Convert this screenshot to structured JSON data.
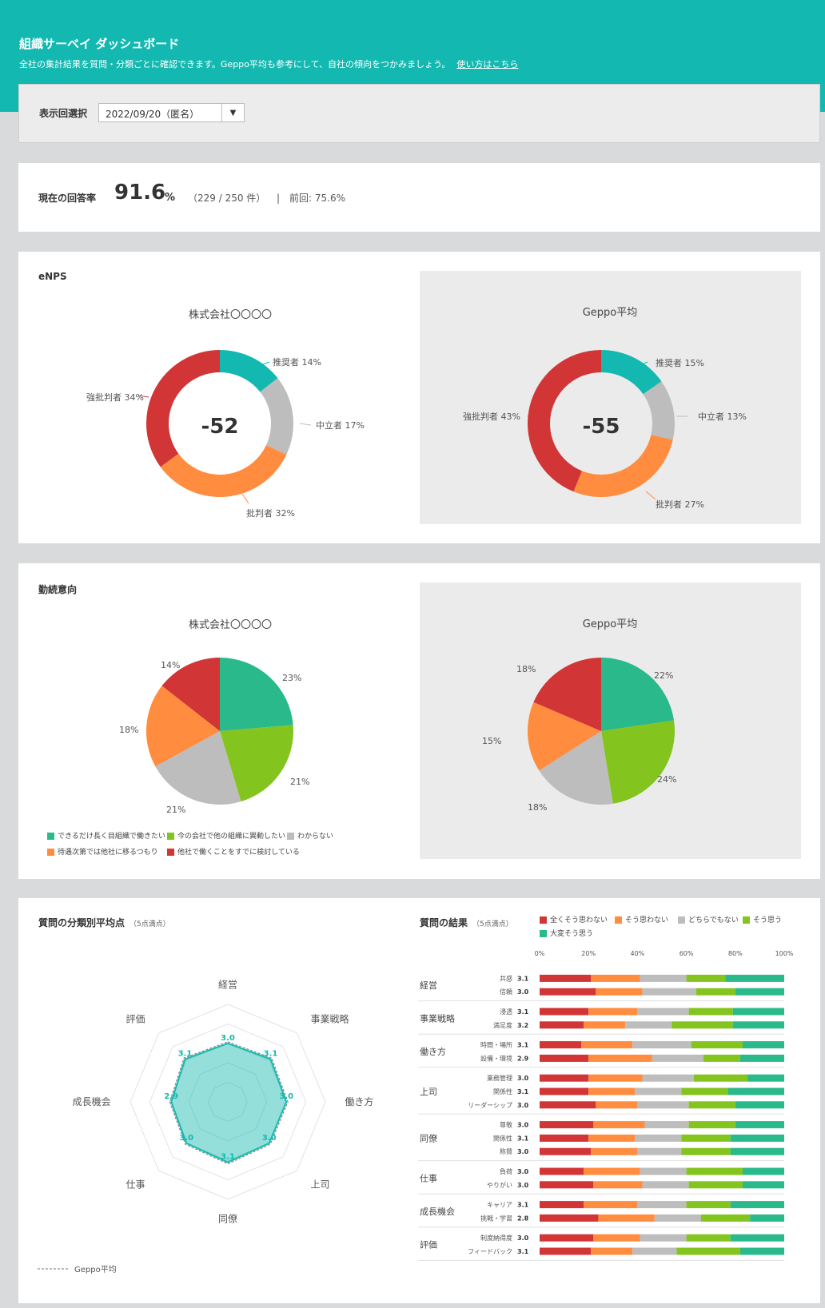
{
  "header": {
    "title": "組織サーベイ ダッシュボード",
    "subtitle": "全社の集計結果を質問・分類ごとに確認できます。Geppo平均も参考にして、自社の傾向をつかみましょう。",
    "help_link": "使い方はこちら"
  },
  "selector": {
    "label": "表示回選択",
    "value": "2022/09/20（匿名）",
    "arrow": "▼"
  },
  "response_rate": {
    "label": "現在の回答率",
    "value": "91.6",
    "unit": "%",
    "count": "（229 / 250 件）",
    "previous": "|　前回: 75.6%"
  },
  "colors": {
    "teal": "#13b9b0",
    "red": "#d23535",
    "orange": "#ff8c3f",
    "gray": "#bdbdbd",
    "green": "#84c41e",
    "emerald": "#2ab98a"
  },
  "enps": {
    "title": "eNPS",
    "company": {
      "name": "株式会社〇〇〇〇",
      "score": "-52",
      "labels": {
        "promoter": "推奨者 14%",
        "neutral": "中立者 17%",
        "critic": "批判者 32%",
        "strong": "強批判者 34%"
      },
      "chart_data": {
        "type": "pie",
        "categories": [
          "推奨者",
          "中立者",
          "批判者",
          "強批判者"
        ],
        "values": [
          14,
          17,
          32,
          34
        ]
      }
    },
    "geppo": {
      "name": "Geppo平均",
      "score": "-55",
      "labels": {
        "promoter": "推奨者 15%",
        "neutral": "中立者 13%",
        "critic": "批判者 27%",
        "strong": "強批判者 43%"
      },
      "chart_data": {
        "type": "pie",
        "categories": [
          "推奨者",
          "中立者",
          "批判者",
          "強批判者"
        ],
        "values": [
          15,
          13,
          27,
          43
        ]
      }
    }
  },
  "retention": {
    "title": "勤続意向",
    "company": {
      "name": "株式会社〇〇〇〇",
      "labels": [
        "23%",
        "21%",
        "21%",
        "18%",
        "14%"
      ],
      "chart_data": {
        "type": "pie",
        "categories": [
          "できるだけ長く目組織で働きたい",
          "今の会社で他の組織に異動したい",
          "わからない",
          "待遇次第では他社に移るつもり",
          "他社で働くことをすでに検討している"
        ],
        "values": [
          23,
          21,
          21,
          18,
          14
        ]
      }
    },
    "geppo": {
      "name": "Geppo平均",
      "labels": [
        "22%",
        "24%",
        "18%",
        "15%",
        "18%"
      ],
      "chart_data": {
        "type": "pie",
        "categories": [
          "できるだけ長く目組織で働きたい",
          "今の会社で他の組織に異動したい",
          "わからない",
          "待遇次第では他社に移るつもり",
          "他社で働くことをすでに検討している"
        ],
        "values": [
          22,
          24,
          18,
          15,
          18
        ]
      }
    },
    "legend": [
      "できるだけ長く目組織で働きたい",
      "今の会社で他の組織に異動したい",
      "わからない",
      "待遇次第では他社に移るつもり",
      "他社で働くことをすでに検討している"
    ]
  },
  "radar": {
    "title": "質問の分類別平均点",
    "note": "（5点満点）",
    "legend": "Geppo平均",
    "chart_data": {
      "type": "radar",
      "categories": [
        "経営",
        "事業戦略",
        "働き方",
        "上司",
        "同僚",
        "仕事",
        "成長機会",
        "評価"
      ],
      "values": [
        3.0,
        3.1,
        3.0,
        3.0,
        3.1,
        3.0,
        2.9,
        3.1
      ],
      "labels": [
        "3.0",
        "3.1",
        "3.0",
        "3.0",
        "3.1",
        "3.0",
        "2.9",
        "3.1"
      ],
      "max": 5
    }
  },
  "results": {
    "title": "質問の結果",
    "note": "（5点満点）",
    "legend": [
      "全くそう思わない",
      "そう思わない",
      "どちらでもない",
      "そう思う",
      "大変そう思う"
    ],
    "axis": [
      "0%",
      "20%",
      "40%",
      "60%",
      "80%",
      "100%"
    ],
    "chart_data": {
      "type": "bar",
      "stacked": true,
      "groups": [
        {
          "name": "経営",
          "items": [
            {
              "label": "共感",
              "score": "3.1",
              "values": [
                21,
                20,
                19,
                16,
                24
              ]
            },
            {
              "label": "信頼",
              "score": "3.0",
              "values": [
                23,
                19,
                22,
                16,
                20
              ]
            }
          ]
        },
        {
          "name": "事業戦略",
          "items": [
            {
              "label": "浸透",
              "score": "3.1",
              "values": [
                20,
                20,
                21,
                18,
                21
              ]
            },
            {
              "label": "満足度",
              "score": "3.2",
              "values": [
                18,
                17,
                19,
                25,
                21
              ]
            }
          ]
        },
        {
          "name": "働き方",
          "items": [
            {
              "label": "時間・場所",
              "score": "3.1",
              "values": [
                17,
                21,
                24,
                21,
                17
              ]
            },
            {
              "label": "設備・環境",
              "score": "2.9",
              "values": [
                20,
                26,
                21,
                15,
                18
              ]
            }
          ]
        },
        {
          "name": "上司",
          "items": [
            {
              "label": "業務管理",
              "score": "3.0",
              "values": [
                20,
                22,
                21,
                22,
                15
              ]
            },
            {
              "label": "関係性",
              "score": "3.1",
              "values": [
                20,
                19,
                19,
                19,
                23
              ]
            },
            {
              "label": "リーダーシップ",
              "score": "3.0",
              "values": [
                23,
                17,
                21,
                19,
                20
              ]
            }
          ]
        },
        {
          "name": "同僚",
          "items": [
            {
              "label": "尊敬",
              "score": "3.0",
              "values": [
                22,
                21,
                18,
                19,
                20
              ]
            },
            {
              "label": "関係性",
              "score": "3.1",
              "values": [
                20,
                19,
                19,
                20,
                22
              ]
            },
            {
              "label": "称賛",
              "score": "3.0",
              "values": [
                21,
                19,
                18,
                20,
                22
              ]
            }
          ]
        },
        {
          "name": "仕事",
          "items": [
            {
              "label": "負荷",
              "score": "3.0",
              "values": [
                18,
                23,
                19,
                23,
                17
              ]
            },
            {
              "label": "やりがい",
              "score": "3.0",
              "values": [
                22,
                20,
                19,
                22,
                17
              ]
            }
          ]
        },
        {
          "name": "成長機会",
          "items": [
            {
              "label": "キャリア",
              "score": "3.1",
              "values": [
                18,
                22,
                20,
                18,
                22
              ]
            },
            {
              "label": "挑戦・学習",
              "score": "2.8",
              "values": [
                24,
                23,
                19,
                20,
                14
              ]
            }
          ]
        },
        {
          "name": "評価",
          "items": [
            {
              "label": "制度納得度",
              "score": "3.0",
              "values": [
                22,
                19,
                19,
                18,
                22
              ]
            },
            {
              "label": "フィードバック",
              "score": "3.1",
              "values": [
                21,
                17,
                18,
                26,
                18
              ]
            }
          ]
        }
      ]
    }
  }
}
